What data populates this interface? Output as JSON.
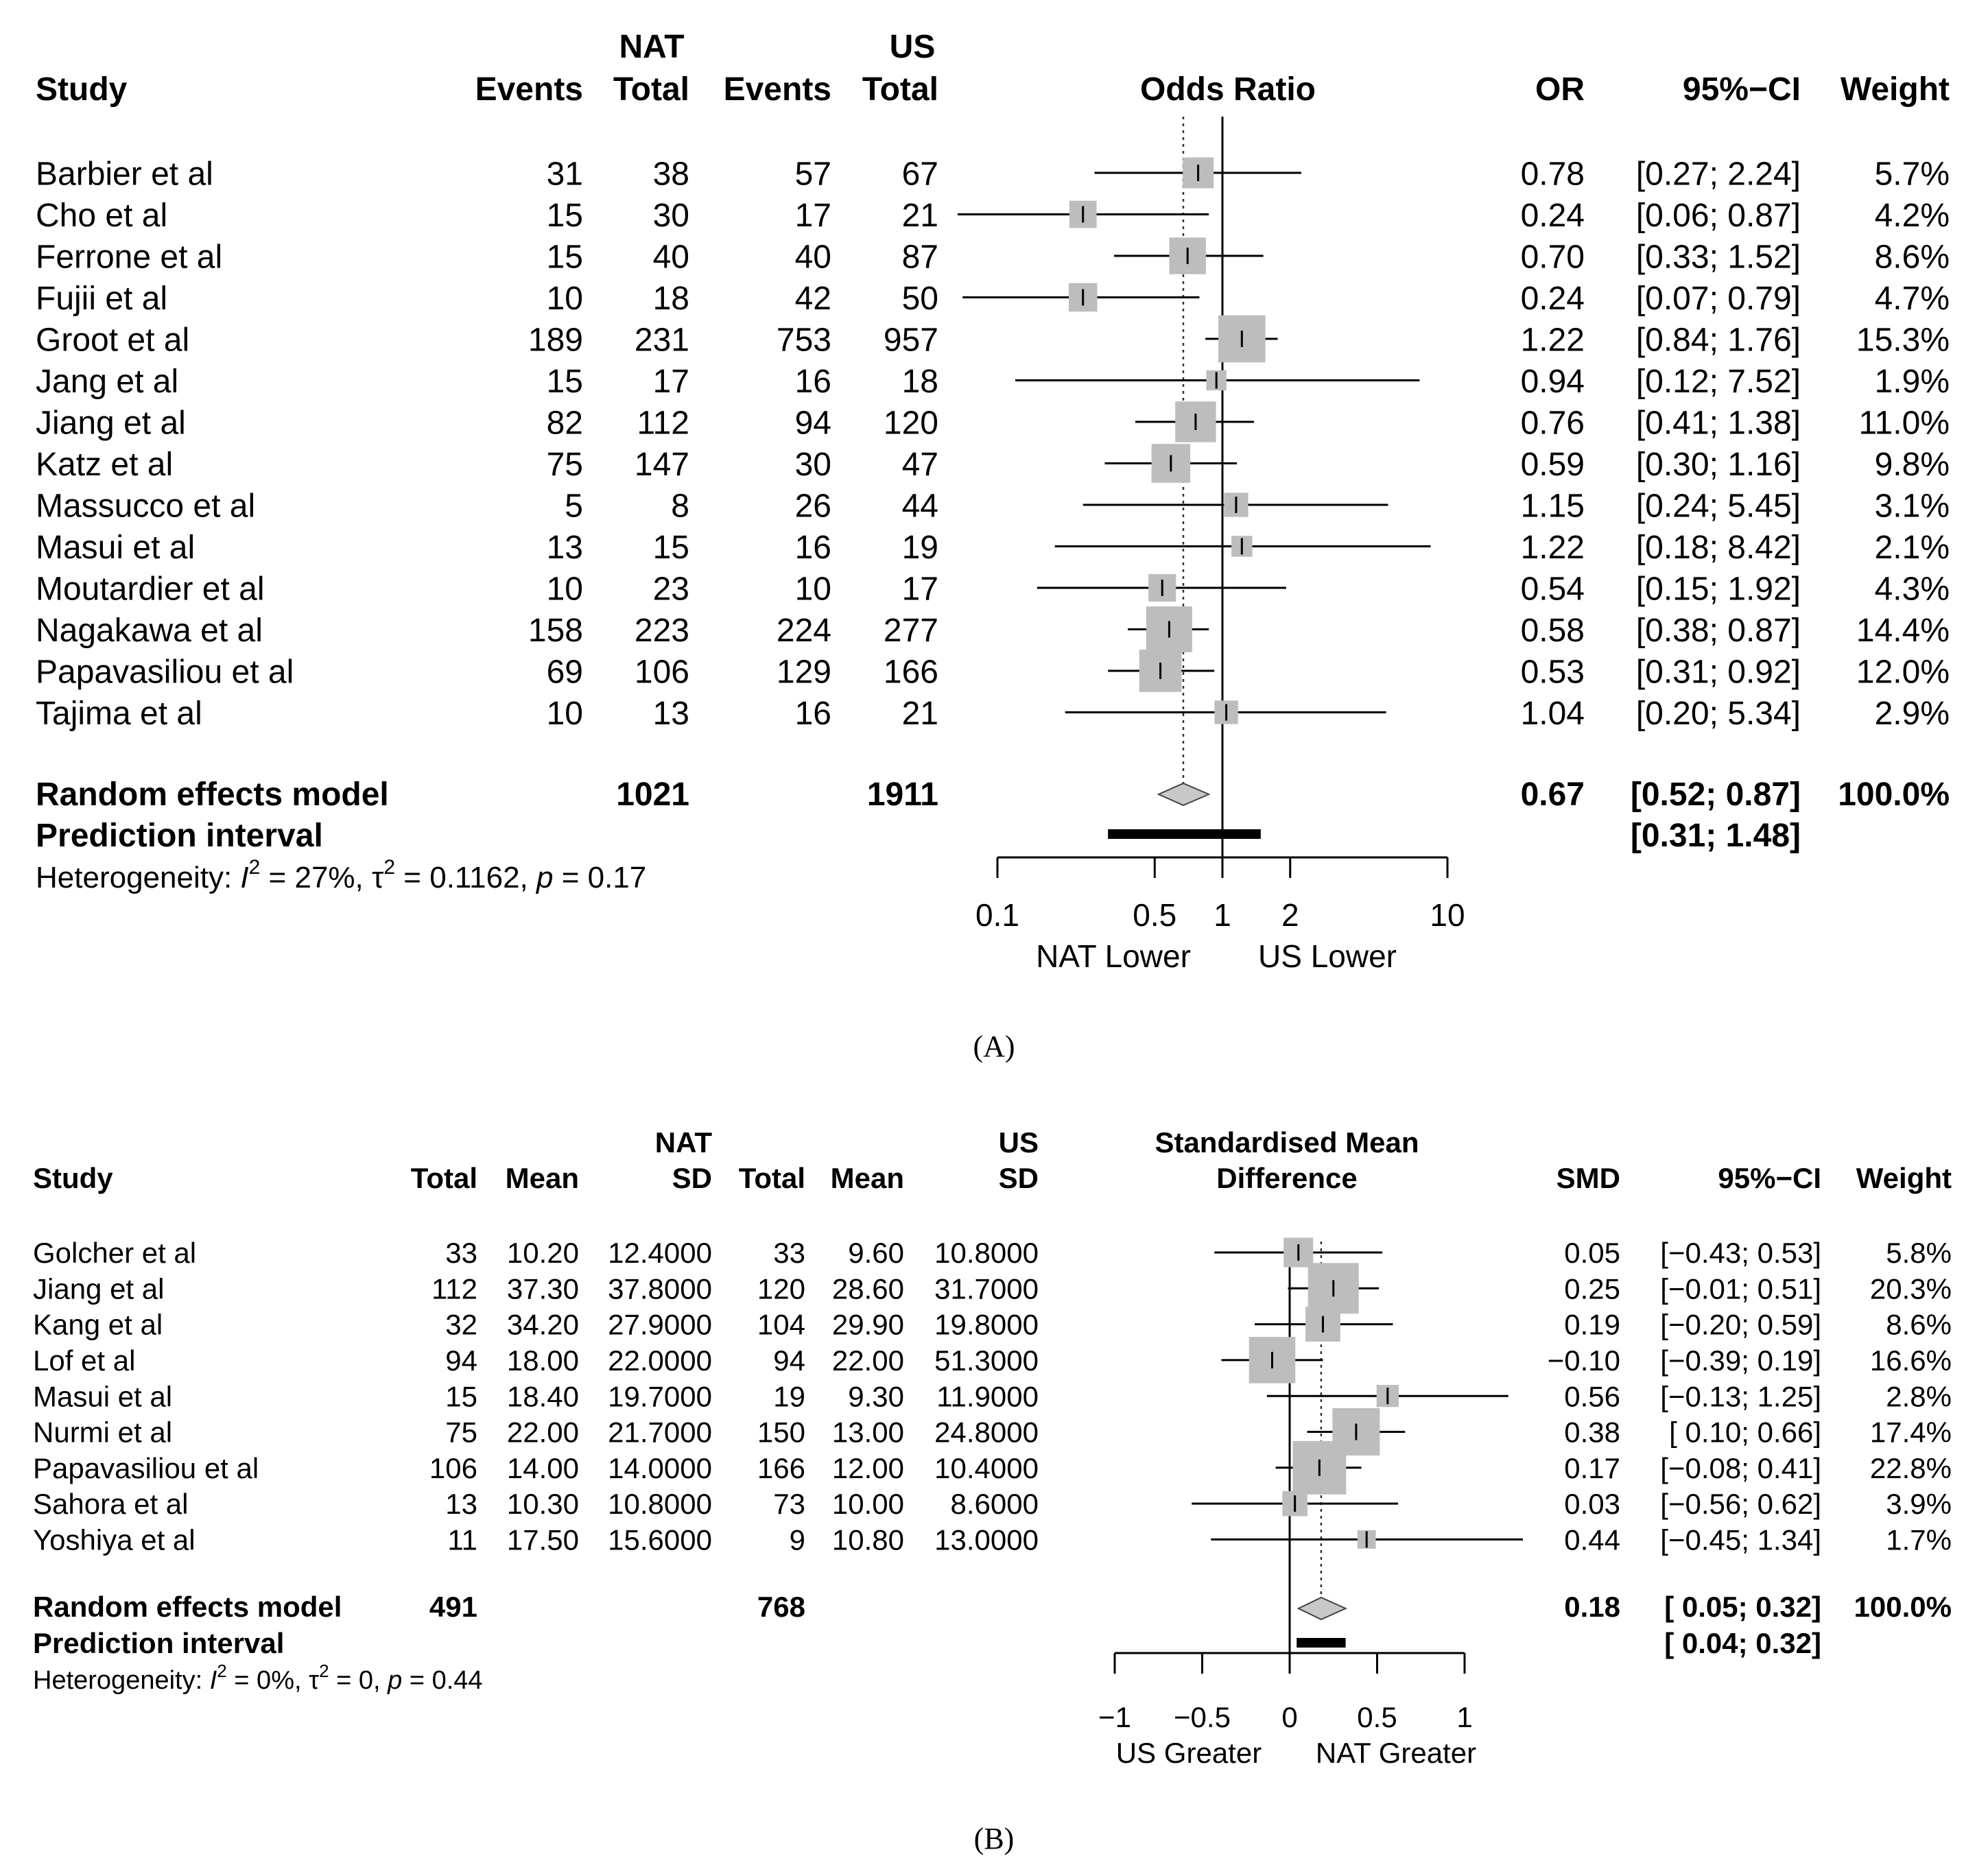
{
  "chart_data": [
    {
      "type": "forest",
      "panel": "(A)",
      "group_label_left": "NAT",
      "group_label_right": "US",
      "headers": {
        "study": "Study",
        "events1": "Events",
        "total1": "Total",
        "events2": "Events",
        "total2": "Total",
        "plot": "Odds Ratio",
        "est": "OR",
        "ci": "95%−CI",
        "weight": "Weight"
      },
      "studies": [
        {
          "name": "Barbier et al",
          "events1": "31",
          "total1": "38",
          "events2": "57",
          "total2": "67",
          "est": 0.78,
          "lo": 0.27,
          "hi": 2.24,
          "est_text": "0.78",
          "ci_text": "[0.27; 2.24]",
          "weight_text": "5.7%",
          "weight": 5.7
        },
        {
          "name": "Cho et al",
          "events1": "15",
          "total1": "30",
          "events2": "17",
          "total2": "21",
          "est": 0.24,
          "lo": 0.06,
          "hi": 0.87,
          "est_text": "0.24",
          "ci_text": "[0.06; 0.87]",
          "weight_text": "4.2%",
          "weight": 4.2
        },
        {
          "name": "Ferrone et al",
          "events1": "15",
          "total1": "40",
          "events2": "40",
          "total2": "87",
          "est": 0.7,
          "lo": 0.33,
          "hi": 1.52,
          "est_text": "0.70",
          "ci_text": "[0.33; 1.52]",
          "weight_text": "8.6%",
          "weight": 8.6
        },
        {
          "name": "Fujii et al",
          "events1": "10",
          "total1": "18",
          "events2": "42",
          "total2": "50",
          "est": 0.24,
          "lo": 0.07,
          "hi": 0.79,
          "est_text": "0.24",
          "ci_text": "[0.07; 0.79]",
          "weight_text": "4.7%",
          "weight": 4.7
        },
        {
          "name": "Groot et al",
          "events1": "189",
          "total1": "231",
          "events2": "753",
          "total2": "957",
          "est": 1.22,
          "lo": 0.84,
          "hi": 1.76,
          "est_text": "1.22",
          "ci_text": "[0.84; 1.76]",
          "weight_text": "15.3%",
          "weight": 15.3
        },
        {
          "name": "Jang et al",
          "events1": "15",
          "total1": "17",
          "events2": "16",
          "total2": "18",
          "est": 0.94,
          "lo": 0.12,
          "hi": 7.52,
          "est_text": "0.94",
          "ci_text": "[0.12; 7.52]",
          "weight_text": "1.9%",
          "weight": 1.9
        },
        {
          "name": "Jiang et al",
          "events1": "82",
          "total1": "112",
          "events2": "94",
          "total2": "120",
          "est": 0.76,
          "lo": 0.41,
          "hi": 1.38,
          "est_text": "0.76",
          "ci_text": "[0.41; 1.38]",
          "weight_text": "11.0%",
          "weight": 11.0
        },
        {
          "name": "Katz et al",
          "events1": "75",
          "total1": "147",
          "events2": "30",
          "total2": "47",
          "est": 0.59,
          "lo": 0.3,
          "hi": 1.16,
          "est_text": "0.59",
          "ci_text": "[0.30; 1.16]",
          "weight_text": "9.8%",
          "weight": 9.8
        },
        {
          "name": "Massucco et al",
          "events1": "5",
          "total1": "8",
          "events2": "26",
          "total2": "44",
          "est": 1.15,
          "lo": 0.24,
          "hi": 5.45,
          "est_text": "1.15",
          "ci_text": "[0.24; 5.45]",
          "weight_text": "3.1%",
          "weight": 3.1
        },
        {
          "name": "Masui et al",
          "events1": "13",
          "total1": "15",
          "events2": "16",
          "total2": "19",
          "est": 1.22,
          "lo": 0.18,
          "hi": 8.42,
          "est_text": "1.22",
          "ci_text": "[0.18; 8.42]",
          "weight_text": "2.1%",
          "weight": 2.1
        },
        {
          "name": "Moutardier et al",
          "events1": "10",
          "total1": "23",
          "events2": "10",
          "total2": "17",
          "est": 0.54,
          "lo": 0.15,
          "hi": 1.92,
          "est_text": "0.54",
          "ci_text": "[0.15; 1.92]",
          "weight_text": "4.3%",
          "weight": 4.3
        },
        {
          "name": "Nagakawa et al",
          "events1": "158",
          "total1": "223",
          "events2": "224",
          "total2": "277",
          "est": 0.58,
          "lo": 0.38,
          "hi": 0.87,
          "est_text": "0.58",
          "ci_text": "[0.38; 0.87]",
          "weight_text": "14.4%",
          "weight": 14.4
        },
        {
          "name": "Papavasiliou et al",
          "events1": "69",
          "total1": "106",
          "events2": "129",
          "total2": "166",
          "est": 0.53,
          "lo": 0.31,
          "hi": 0.92,
          "est_text": "0.53",
          "ci_text": "[0.31; 0.92]",
          "weight_text": "12.0%",
          "weight": 12.0
        },
        {
          "name": "Tajima et al",
          "events1": "10",
          "total1": "13",
          "events2": "16",
          "total2": "21",
          "est": 1.04,
          "lo": 0.2,
          "hi": 5.34,
          "est_text": "1.04",
          "ci_text": "[0.20; 5.34]",
          "weight_text": "2.9%",
          "weight": 2.9
        }
      ],
      "summary": {
        "label": "Random effects model",
        "total1": "1021",
        "total2": "1911",
        "est": 0.67,
        "lo": 0.52,
        "hi": 0.87,
        "est_text": "0.67",
        "ci_text": "[0.52; 0.87]",
        "weight_text": "100.0%"
      },
      "prediction": {
        "label": "Prediction interval",
        "lo": 0.31,
        "hi": 1.48,
        "ci_text": "[0.31; 1.48]"
      },
      "heterogeneity": {
        "prefix": "Heterogeneity: ",
        "i2_symbol": "I",
        "i2_value": " = 27%, ",
        "tau_symbol": "τ",
        "tau_value": " = 0.1162, ",
        "p_symbol": "p",
        "p_value": " = 0.17",
        "sup": "2"
      },
      "axis": {
        "scale": "log",
        "min": 0.1,
        "max": 10,
        "null_value": 1,
        "ticks": [
          0.1,
          0.5,
          1,
          2,
          10
        ],
        "tick_labels": [
          "0.1",
          "0.5",
          "1",
          "2",
          "10"
        ]
      },
      "xlabel_left": "NAT Lower",
      "xlabel_right": "US Lower"
    },
    {
      "type": "forest",
      "panel": "(B)",
      "group_label_left": "NAT",
      "group_label_right": "US",
      "headers": {
        "study": "Study",
        "total1": "Total",
        "mean1": "Mean",
        "sd1": "SD",
        "total2": "Total",
        "mean2": "Mean",
        "sd2": "SD",
        "plot_line1": "Standardised Mean",
        "plot_line2": "Difference",
        "est": "SMD",
        "ci": "95%−CI",
        "weight": "Weight"
      },
      "studies": [
        {
          "name": "Golcher et al",
          "total1": "33",
          "mean1": "10.20",
          "sd1": "12.4000",
          "total2": "33",
          "mean2": "9.60",
          "sd2": "10.8000",
          "est": 0.05,
          "lo": -0.43,
          "hi": 0.53,
          "est_text": "0.05",
          "ci_text": "[−0.43; 0.53]",
          "weight_text": "5.8%",
          "weight": 5.8
        },
        {
          "name": "Jiang et al",
          "total1": "112",
          "mean1": "37.30",
          "sd1": "37.8000",
          "total2": "120",
          "mean2": "28.60",
          "sd2": "31.7000",
          "est": 0.25,
          "lo": -0.01,
          "hi": 0.51,
          "est_text": "0.25",
          "ci_text": "[−0.01; 0.51]",
          "weight_text": "20.3%",
          "weight": 20.3
        },
        {
          "name": "Kang et al",
          "total1": "32",
          "mean1": "34.20",
          "sd1": "27.9000",
          "total2": "104",
          "mean2": "29.90",
          "sd2": "19.8000",
          "est": 0.19,
          "lo": -0.2,
          "hi": 0.59,
          "est_text": "0.19",
          "ci_text": "[−0.20; 0.59]",
          "weight_text": "8.6%",
          "weight": 8.6
        },
        {
          "name": "Lof et al",
          "total1": "94",
          "mean1": "18.00",
          "sd1": "22.0000",
          "total2": "94",
          "mean2": "22.00",
          "sd2": "51.3000",
          "est": -0.1,
          "lo": -0.39,
          "hi": 0.19,
          "est_text": "−0.10",
          "ci_text": "[−0.39; 0.19]",
          "weight_text": "16.6%",
          "weight": 16.6
        },
        {
          "name": "Masui et al",
          "total1": "15",
          "mean1": "18.40",
          "sd1": "19.7000",
          "total2": "19",
          "mean2": "9.30",
          "sd2": "11.9000",
          "est": 0.56,
          "lo": -0.13,
          "hi": 1.25,
          "est_text": "0.56",
          "ci_text": "[−0.13; 1.25]",
          "weight_text": "2.8%",
          "weight": 2.8
        },
        {
          "name": "Nurmi et al",
          "total1": "75",
          "mean1": "22.00",
          "sd1": "21.7000",
          "total2": "150",
          "mean2": "13.00",
          "sd2": "24.8000",
          "est": 0.38,
          "lo": 0.1,
          "hi": 0.66,
          "est_text": "0.38",
          "ci_text": "[ 0.10; 0.66]",
          "weight_text": "17.4%",
          "weight": 17.4
        },
        {
          "name": "Papavasiliou et al",
          "total1": "106",
          "mean1": "14.00",
          "sd1": "14.0000",
          "total2": "166",
          "mean2": "12.00",
          "sd2": "10.4000",
          "est": 0.17,
          "lo": -0.08,
          "hi": 0.41,
          "est_text": "0.17",
          "ci_text": "[−0.08; 0.41]",
          "weight_text": "22.8%",
          "weight": 22.8
        },
        {
          "name": "Sahora et al",
          "total1": "13",
          "mean1": "10.30",
          "sd1": "10.8000",
          "total2": "73",
          "mean2": "10.00",
          "sd2": "8.6000",
          "est": 0.03,
          "lo": -0.56,
          "hi": 0.62,
          "est_text": "0.03",
          "ci_text": "[−0.56; 0.62]",
          "weight_text": "3.9%",
          "weight": 3.9
        },
        {
          "name": "Yoshiya et al",
          "total1": "11",
          "mean1": "17.50",
          "sd1": "15.6000",
          "total2": "9",
          "mean2": "10.80",
          "sd2": "13.0000",
          "est": 0.44,
          "lo": -0.45,
          "hi": 1.34,
          "est_text": "0.44",
          "ci_text": "[−0.45; 1.34]",
          "weight_text": "1.7%",
          "weight": 1.7
        }
      ],
      "summary": {
        "label": "Random effects model",
        "total1": "491",
        "total2": "768",
        "est": 0.18,
        "lo": 0.05,
        "hi": 0.32,
        "est_text": "0.18",
        "ci_text": "[ 0.05; 0.32]",
        "weight_text": "100.0%"
      },
      "prediction": {
        "label": "Prediction interval",
        "lo": 0.04,
        "hi": 0.32,
        "ci_text": "[ 0.04; 0.32]"
      },
      "heterogeneity": {
        "prefix": "Heterogeneity: ",
        "i2_symbol": "I",
        "i2_value": " = 0%, ",
        "tau_symbol": "τ",
        "tau_value": " = 0, ",
        "p_symbol": "p",
        "p_value": " = 0.44",
        "sup": "2"
      },
      "axis": {
        "scale": "linear",
        "min": -1,
        "max": 1,
        "null_value": 0,
        "ticks": [
          -1,
          -0.5,
          0,
          0.5,
          1
        ],
        "tick_labels": [
          "−1",
          "−0.5",
          "0",
          "0.5",
          "1"
        ]
      },
      "xlabel_left": "US Greater",
      "xlabel_right": "NAT Greater"
    }
  ]
}
